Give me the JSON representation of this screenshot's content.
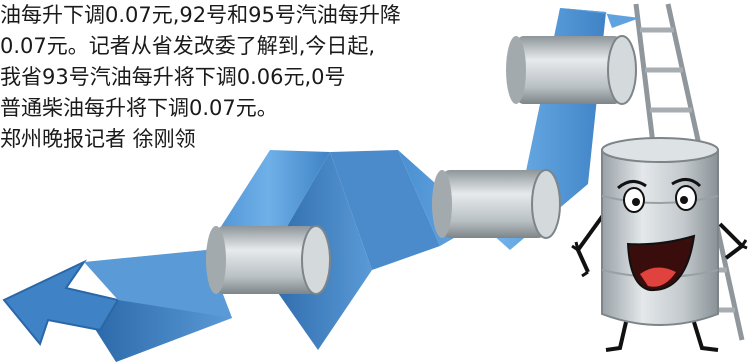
{
  "article": {
    "lines": [
      "油每升下调0.07元,92号和95号汽油每升降",
      "0.07元。记者从省发改委了解到,今日起,",
      "我省93号汽油每升将下调0.06元,0号",
      "普通柴油每升将下调0.07元。"
    ],
    "byline": "郑州晚报记者  徐刚领"
  },
  "illustration": {
    "arrow_color": "#5b9bd8",
    "arrow_dark": "#2f6fae",
    "barrel_color": "#c9cfd3",
    "ladder_color": "#9aa1a6"
  }
}
